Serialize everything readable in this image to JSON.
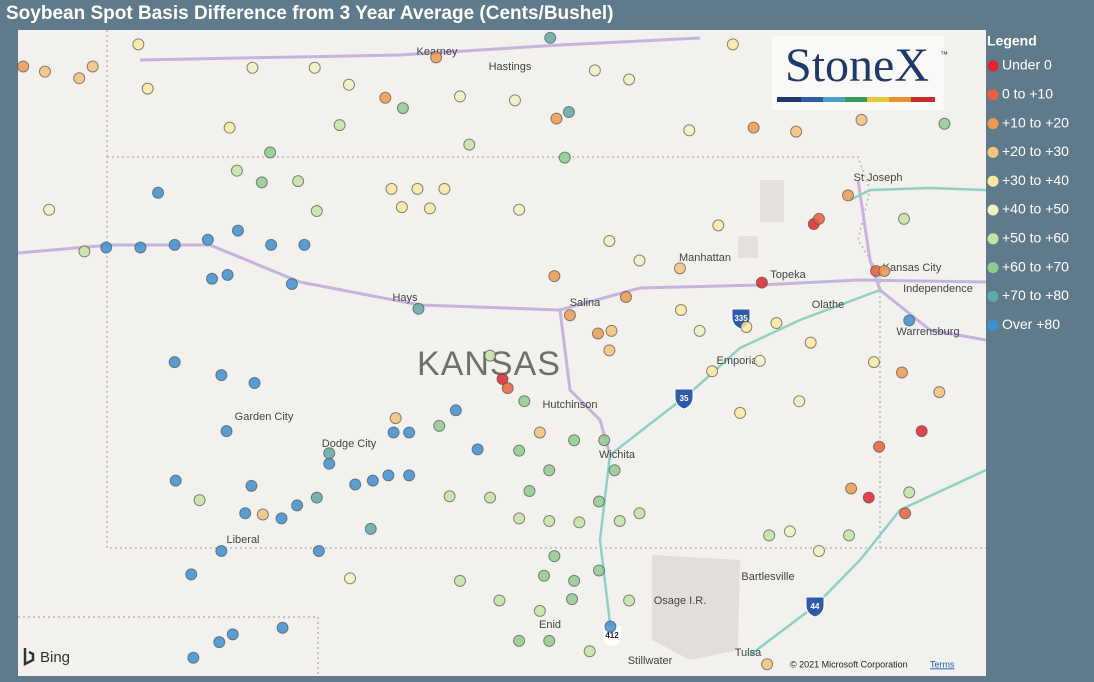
{
  "title": "Soybean Spot Basis Difference from 3 Year Average (Cents/Bushel)",
  "logo": {
    "name": "StoneX",
    "mark": "™"
  },
  "legend": {
    "title": "Legend",
    "items": [
      {
        "name": "Under 0",
        "color": "#e0262b"
      },
      {
        "name": "0 to +10",
        "color": "#e8613a"
      },
      {
        "name": "+10 to +20",
        "color": "#ee9a4f"
      },
      {
        "name": "+20 to +30",
        "color": "#f5c37a"
      },
      {
        "name": "+30 to +40",
        "color": "#fbe9a0"
      },
      {
        "name": "+40 to +50",
        "color": "#eef3c0"
      },
      {
        "name": "+50 to +60",
        "color": "#c5e3a5"
      },
      {
        "name": "+60 to +70",
        "color": "#8fcb8e"
      },
      {
        "name": "+70 to +80",
        "color": "#5fa9a8"
      },
      {
        "name": "Over +80",
        "color": "#3d8fd0"
      }
    ]
  },
  "map": {
    "xlim": [
      -102.91,
      -93.58
    ],
    "ylim": [
      36.02,
      40.98
    ],
    "points": [
      [
        -101.56,
        39.73,
        9
      ],
      [
        -102.06,
        39.31,
        9
      ],
      [
        -101.73,
        39.31,
        9
      ],
      [
        -101.4,
        39.33,
        9
      ],
      [
        -101.08,
        39.37,
        9
      ],
      [
        -100.79,
        39.44,
        9
      ],
      [
        -100.47,
        39.33,
        9
      ],
      [
        -100.15,
        39.33,
        9
      ],
      [
        -101.04,
        39.07,
        9
      ],
      [
        -100.89,
        39.1,
        9
      ],
      [
        -100.27,
        39.03,
        9
      ],
      [
        -101.4,
        38.43,
        9
      ],
      [
        -100.95,
        38.33,
        9
      ],
      [
        -100.63,
        38.27,
        9
      ],
      [
        -100.9,
        37.9,
        9
      ],
      [
        -101.39,
        37.52,
        9
      ],
      [
        -100.66,
        37.48,
        9
      ],
      [
        -100.72,
        37.27,
        9
      ],
      [
        -100.37,
        37.23,
        9
      ],
      [
        -100.22,
        37.33,
        9
      ],
      [
        -100.01,
        36.98,
        9
      ],
      [
        -100.95,
        36.98,
        9
      ],
      [
        -101.24,
        36.8,
        9
      ],
      [
        -101.22,
        36.16,
        9
      ],
      [
        -100.97,
        36.28,
        9
      ],
      [
        -100.84,
        36.34,
        9
      ],
      [
        -100.36,
        36.39,
        9
      ],
      [
        -99.66,
        37.49,
        9
      ],
      [
        -99.49,
        37.52,
        9
      ],
      [
        -99.34,
        37.56,
        9
      ],
      [
        -99.14,
        37.56,
        9
      ],
      [
        -99.29,
        37.89,
        9
      ],
      [
        -99.14,
        37.89,
        9
      ],
      [
        -98.69,
        38.06,
        9
      ],
      [
        -98.48,
        37.76,
        9
      ],
      [
        -99.91,
        37.65,
        9
      ],
      [
        -94.32,
        38.75,
        9
      ],
      [
        -97.2,
        36.4,
        9
      ],
      [
        -99.05,
        38.84,
        8
      ],
      [
        -100.03,
        37.39,
        8
      ],
      [
        -99.51,
        37.15,
        8
      ],
      [
        -99.91,
        37.73,
        8
      ],
      [
        -97.6,
        40.35,
        8
      ],
      [
        -97.78,
        40.92,
        8
      ],
      [
        -98.24,
        38.3,
        0
      ],
      [
        -95.74,
        39.04,
        0
      ],
      [
        -95.24,
        39.49,
        0
      ],
      [
        -94.71,
        37.39,
        0
      ],
      [
        -94.2,
        37.9,
        0
      ],
      [
        -98.19,
        38.23,
        1
      ],
      [
        -95.19,
        39.53,
        1
      ],
      [
        -94.64,
        39.13,
        1
      ],
      [
        -94.61,
        37.78,
        1
      ],
      [
        -94.36,
        37.27,
        1
      ],
      [
        -97.72,
        40.3,
        2
      ],
      [
        -95.82,
        40.23,
        2
      ],
      [
        -97.74,
        39.09,
        2
      ],
      [
        -97.59,
        38.79,
        2
      ],
      [
        -97.32,
        38.65,
        2
      ],
      [
        -97.05,
        38.93,
        2
      ],
      [
        -98.88,
        40.77,
        2
      ],
      [
        -99.37,
        40.46,
        2
      ],
      [
        -94.91,
        39.71,
        2
      ],
      [
        -94.56,
        39.13,
        2
      ],
      [
        -94.88,
        37.46,
        2
      ],
      [
        -94.39,
        38.35,
        2
      ],
      [
        -102.86,
        40.7,
        2
      ],
      [
        -102.65,
        40.66,
        3
      ],
      [
        -102.32,
        40.61,
        3
      ],
      [
        -102.19,
        40.7,
        3
      ],
      [
        -99.27,
        38.0,
        3
      ],
      [
        -97.19,
        38.67,
        3
      ],
      [
        -97.21,
        38.52,
        3
      ],
      [
        -97.88,
        37.89,
        3
      ],
      [
        -96.53,
        39.15,
        3
      ],
      [
        -95.41,
        40.2,
        3
      ],
      [
        -94.78,
        40.29,
        3
      ],
      [
        -94.03,
        38.2,
        3
      ],
      [
        -95.69,
        36.11,
        3
      ],
      [
        -100.55,
        37.26,
        3
      ],
      [
        -101.75,
        40.87,
        4
      ],
      [
        -101.66,
        40.53,
        4
      ],
      [
        -100.87,
        40.23,
        4
      ],
      [
        -99.31,
        39.76,
        4
      ],
      [
        -99.06,
        39.76,
        4
      ],
      [
        -98.8,
        39.76,
        4
      ],
      [
        -99.21,
        39.62,
        4
      ],
      [
        -98.94,
        39.61,
        4
      ],
      [
        -96.52,
        38.83,
        4
      ],
      [
        -96.22,
        38.36,
        4
      ],
      [
        -95.95,
        38.04,
        4
      ],
      [
        -95.89,
        38.7,
        4
      ],
      [
        -95.6,
        38.73,
        4
      ],
      [
        -95.27,
        38.58,
        4
      ],
      [
        -94.66,
        38.43,
        4
      ],
      [
        -96.02,
        40.87,
        4
      ],
      [
        -96.16,
        39.48,
        4
      ],
      [
        -100.65,
        40.69,
        5
      ],
      [
        -100.05,
        40.69,
        5
      ],
      [
        -99.72,
        40.56,
        5
      ],
      [
        -98.65,
        40.47,
        5
      ],
      [
        -98.12,
        40.44,
        5
      ],
      [
        -97.35,
        40.67,
        5
      ],
      [
        -97.02,
        40.6,
        5
      ],
      [
        -96.44,
        40.21,
        5
      ],
      [
        -98.08,
        39.6,
        5
      ],
      [
        -97.21,
        39.36,
        5
      ],
      [
        -96.92,
        39.21,
        5
      ],
      [
        -96.34,
        38.67,
        5
      ],
      [
        -95.76,
        38.44,
        5
      ],
      [
        -95.38,
        38.13,
        5
      ],
      [
        -95.19,
        36.98,
        5
      ],
      [
        -95.47,
        37.13,
        5
      ],
      [
        -102.61,
        39.6,
        5
      ],
      [
        -99.71,
        36.77,
        5
      ],
      [
        -102.27,
        39.28,
        6
      ],
      [
        -99.81,
        40.25,
        6
      ],
      [
        -98.56,
        40.1,
        6
      ],
      [
        -100.8,
        39.9,
        6
      ],
      [
        -100.21,
        39.82,
        6
      ],
      [
        -100.03,
        39.59,
        6
      ],
      [
        -98.36,
        38.48,
        6
      ],
      [
        -98.75,
        37.4,
        6
      ],
      [
        -98.36,
        37.39,
        6
      ],
      [
        -98.08,
        37.23,
        6
      ],
      [
        -97.79,
        37.21,
        6
      ],
      [
        -97.5,
        37.2,
        6
      ],
      [
        -97.11,
        37.21,
        6
      ],
      [
        -96.92,
        37.27,
        6
      ],
      [
        -98.65,
        36.75,
        6
      ],
      [
        -98.27,
        36.6,
        6
      ],
      [
        -97.88,
        36.52,
        6
      ],
      [
        -97.4,
        36.21,
        6
      ],
      [
        -97.02,
        36.6,
        6
      ],
      [
        -95.67,
        37.1,
        6
      ],
      [
        -94.9,
        37.1,
        6
      ],
      [
        -94.32,
        37.43,
        6
      ],
      [
        -101.16,
        37.37,
        6
      ],
      [
        -94.37,
        39.53,
        6
      ],
      [
        -100.56,
        39.81,
        7
      ],
      [
        -100.48,
        40.04,
        7
      ],
      [
        -99.2,
        40.38,
        7
      ],
      [
        -97.64,
        40.0,
        7
      ],
      [
        -98.85,
        37.94,
        7
      ],
      [
        -98.08,
        37.75,
        7
      ],
      [
        -97.79,
        37.6,
        7
      ],
      [
        -97.55,
        37.83,
        7
      ],
      [
        -97.26,
        37.83,
        7
      ],
      [
        -97.98,
        37.44,
        7
      ],
      [
        -97.31,
        37.36,
        7
      ],
      [
        -97.74,
        36.94,
        7
      ],
      [
        -97.84,
        36.79,
        7
      ],
      [
        -97.55,
        36.75,
        7
      ],
      [
        -97.31,
        36.83,
        7
      ],
      [
        -97.57,
        36.61,
        7
      ],
      [
        -98.08,
        36.29,
        7
      ],
      [
        -97.79,
        36.29,
        7
      ],
      [
        -98.03,
        38.13,
        7
      ],
      [
        -97.16,
        37.6,
        7
      ],
      [
        -93.98,
        40.26,
        7
      ]
    ]
  },
  "labels": [
    "Kearney",
    "Hastings",
    "St Joseph",
    "Manhattan",
    "Topeka",
    "Kansas City",
    "Independence",
    "Olathe",
    "Hays",
    "Salina",
    "KANSAS",
    "Warrensburg",
    "Emporia",
    "Hutchinson",
    "Garden City",
    "Dodge City",
    "Wichita",
    "Liberal",
    "Bartlesville",
    "Osage I.R.",
    "Enid",
    "Stillwater",
    "Tulsa"
  ],
  "shields": [
    "335",
    "35",
    "44",
    "412"
  ],
  "attribution": {
    "provider": "Bing",
    "copyright": "© 2021 Microsoft Corporation",
    "terms": "Terms"
  }
}
